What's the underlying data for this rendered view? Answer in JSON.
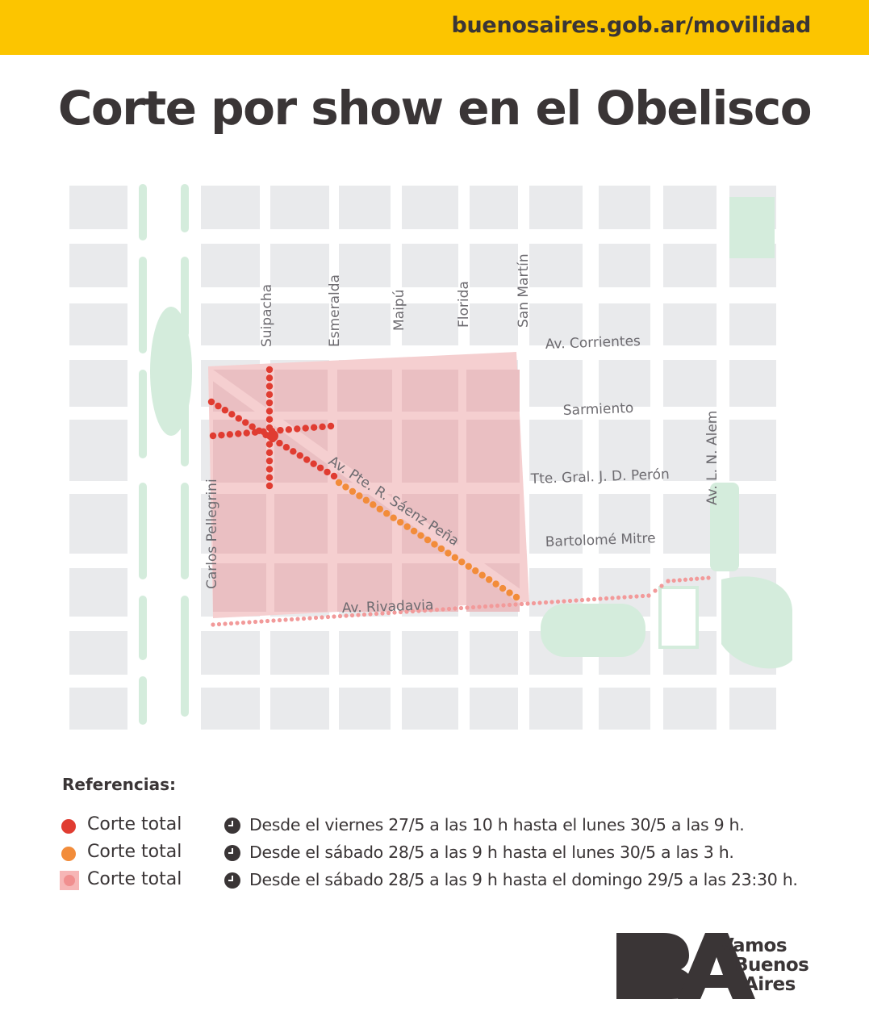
{
  "header": {
    "url": "buenosaires.gob.ar/movilidad",
    "bar_color": "#fcc500"
  },
  "title": "Corte por show en el Obelisco",
  "map": {
    "colors": {
      "background": "#ffffff",
      "block": "#e9eaec",
      "park": "#d4ecdc",
      "affected_area": "#f5cfd0",
      "affected_block": "#eabfc2",
      "red": "#e03c31",
      "orange": "#f28c3a",
      "pink": "#f29a9a"
    },
    "streets": {
      "suipacha": "Suipacha",
      "esmeralda": "Esmeralda",
      "maipu": "Maipú",
      "florida": "Florida",
      "san_martin": "San Martín",
      "corrientes": "Av. Corrientes",
      "sarmiento": "Sarmiento",
      "peron": "Tte. Gral. J. D. Perón",
      "mitre": "Bartolomé Mitre",
      "rivadavia": "Av. Rivadavia",
      "pellegrini": "Carlos Pellegrini",
      "saenz_pena": "Av. Pte. R. Sáenz Peña",
      "alem": "Av. L. N. Alem"
    }
  },
  "legend": {
    "title": "Referencias:",
    "items": [
      {
        "label": "Corte total",
        "color": "#e03c31",
        "icon": "red-dot-icon",
        "desc": "Desde el viernes 27/5 a las 10 h hasta el lunes 30/5 a las 9 h."
      },
      {
        "label": "Corte total",
        "color": "#f28c3a",
        "icon": "orange-dot-icon",
        "desc": "Desde el sábado 28/5 a las 9 h hasta el lunes 30/5 a las 3 h."
      },
      {
        "label": "Corte total",
        "color": "#f29a9a",
        "icon": "pink-area-icon",
        "desc": "Desde el sábado 28/5 a las 9 h hasta el domingo 29/5 a las 23:30 h."
      }
    ]
  },
  "logo": {
    "mark": "BA",
    "line1": "Vamos",
    "line2": "Buenos",
    "line3": "Aires"
  }
}
